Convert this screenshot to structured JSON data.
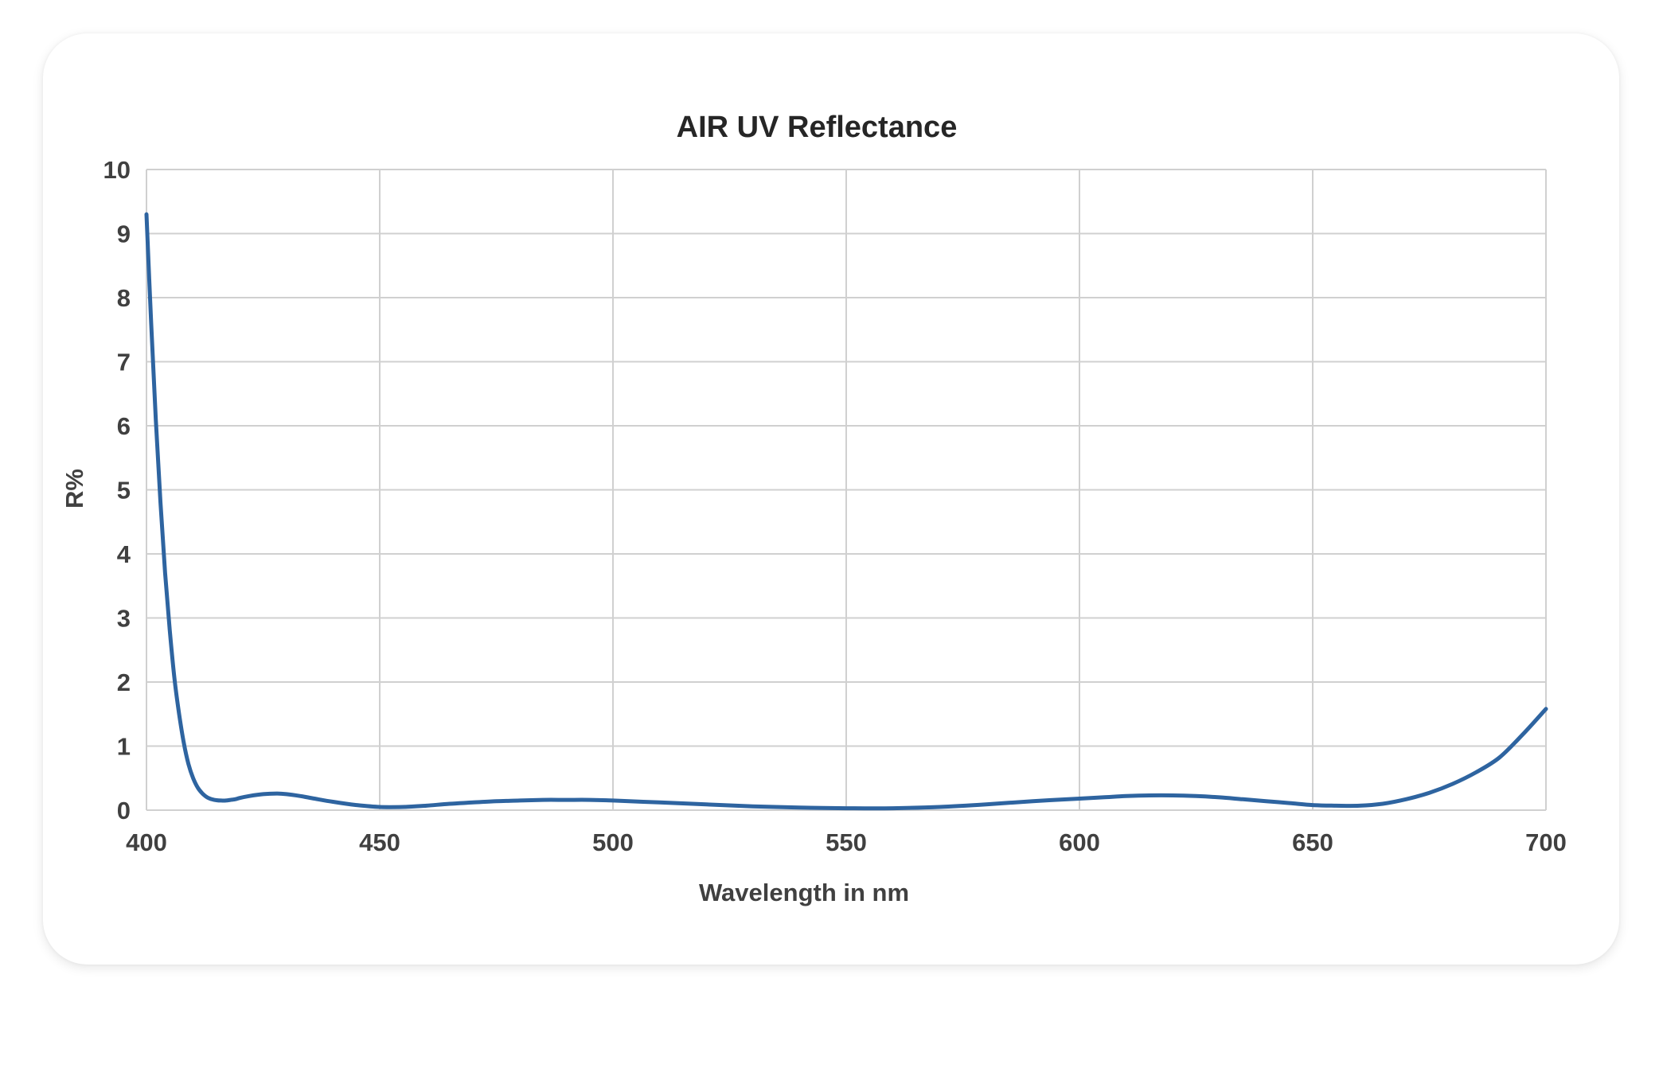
{
  "chart_data": {
    "type": "line",
    "title": "AIR UV  Reflectance",
    "xlabel": "Wavelength in nm",
    "ylabel": "R%",
    "xlim": [
      400,
      700
    ],
    "ylim": [
      0,
      10
    ],
    "x_ticks": [
      400,
      450,
      500,
      550,
      600,
      650,
      700
    ],
    "y_ticks": [
      0,
      1,
      2,
      3,
      4,
      5,
      6,
      7,
      8,
      9,
      10
    ],
    "grid": true,
    "legend": "none",
    "series": [
      {
        "color": "#2e64a0",
        "x": [
          400,
          401,
          402,
          403,
          404,
          405,
          406,
          407,
          408,
          409,
          410,
          411,
          412,
          413,
          414,
          415,
          416,
          417,
          418,
          419,
          420,
          422,
          425,
          428,
          430,
          433,
          436,
          440,
          445,
          450,
          455,
          460,
          465,
          470,
          475,
          480,
          485,
          490,
          495,
          500,
          510,
          520,
          530,
          540,
          550,
          560,
          570,
          580,
          590,
          600,
          605,
          610,
          615,
          620,
          625,
          630,
          635,
          640,
          645,
          650,
          655,
          660,
          665,
          670,
          675,
          680,
          685,
          690,
          695,
          700
        ],
        "y": [
          9.3,
          7.6,
          6.1,
          4.8,
          3.7,
          2.8,
          2.05,
          1.5,
          1.05,
          0.72,
          0.5,
          0.35,
          0.26,
          0.2,
          0.17,
          0.155,
          0.15,
          0.15,
          0.16,
          0.17,
          0.19,
          0.22,
          0.25,
          0.26,
          0.25,
          0.22,
          0.18,
          0.13,
          0.08,
          0.05,
          0.05,
          0.07,
          0.1,
          0.12,
          0.14,
          0.15,
          0.16,
          0.16,
          0.16,
          0.15,
          0.12,
          0.09,
          0.06,
          0.04,
          0.03,
          0.03,
          0.05,
          0.09,
          0.14,
          0.18,
          0.2,
          0.22,
          0.23,
          0.23,
          0.22,
          0.2,
          0.17,
          0.14,
          0.11,
          0.08,
          0.07,
          0.07,
          0.1,
          0.17,
          0.27,
          0.41,
          0.59,
          0.82,
          1.18,
          1.58
        ]
      }
    ]
  }
}
